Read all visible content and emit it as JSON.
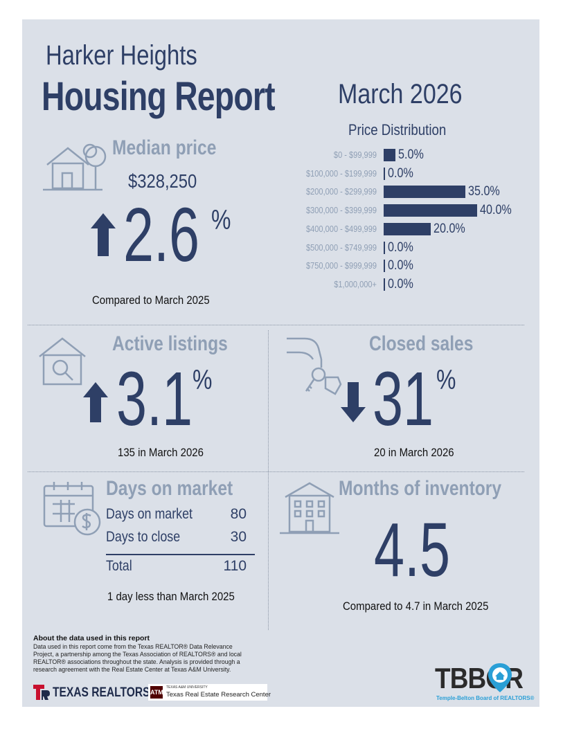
{
  "header": {
    "city": "Harker Heights",
    "report_title": "Housing Report",
    "period": "March 2026"
  },
  "median_price": {
    "title": "Median price",
    "value": "$328,250",
    "change": "2.6",
    "unit": "%",
    "direction": "up",
    "caption": "Compared to March 2025"
  },
  "price_distribution": {
    "title": "Price Distribution",
    "rows": [
      {
        "label": "$0 - $99,999",
        "pct": 5.0,
        "text": "5.0%"
      },
      {
        "label": "$100,000 - $199,999",
        "pct": 0.0,
        "text": "0.0%"
      },
      {
        "label": "$200,000 - $299,999",
        "pct": 35.0,
        "text": "35.0%"
      },
      {
        "label": "$300,000 - $399,999",
        "pct": 40.0,
        "text": "40.0%"
      },
      {
        "label": "$400,000 - $499,999",
        "pct": 20.0,
        "text": "20.0%"
      },
      {
        "label": "$500,000 - $749,999",
        "pct": 0.0,
        "text": "0.0%"
      },
      {
        "label": "$750,000 - $999,999",
        "pct": 0.0,
        "text": "0.0%"
      },
      {
        "label": "$1,000,000+",
        "pct": 0.0,
        "text": "0.0%"
      }
    ]
  },
  "active_listings": {
    "title": "Active listings",
    "change": "3.1",
    "unit": "%",
    "direction": "up",
    "caption": "135 in March 2026"
  },
  "closed_sales": {
    "title": "Closed sales",
    "change": "31",
    "unit": "%",
    "direction": "down",
    "caption": "20 in March 2026"
  },
  "days_on_market": {
    "title": "Days on market",
    "rows": [
      {
        "label": "Days on market",
        "value": "80"
      },
      {
        "label": "Days to close",
        "value": "30"
      }
    ],
    "total_label": "Total",
    "total_value": "110",
    "caption": "1 day less than March 2025"
  },
  "months_inventory": {
    "title": "Months of inventory",
    "value": "4.5",
    "caption": "Compared to 4.7 in March 2025"
  },
  "about": {
    "heading": "About the data used in this report",
    "text": "Data used in this report come from the Texas REALTOR® Data Relevance Project, a partnership among the Texas Association of REALTORS® and local REALTOR® associations throughout the state. Analysis is provided through a research agreement with the Real Estate Center at Texas A&M University."
  },
  "logos": {
    "texas_realtors": "TEXAS REALTORS",
    "tamu_small": "TEXAS A&M UNIVERSITY",
    "tamu_center": "Texas Real Estate Research Center",
    "tbbor": "TBBOR",
    "tbbor_sub": "Temple-Belton Board of REALTORS®"
  },
  "colors": {
    "navy": "#2e3f66",
    "steel": "#8f9fb5",
    "panel": "#dbe0e8",
    "accent_blue": "#2a9fd6"
  }
}
